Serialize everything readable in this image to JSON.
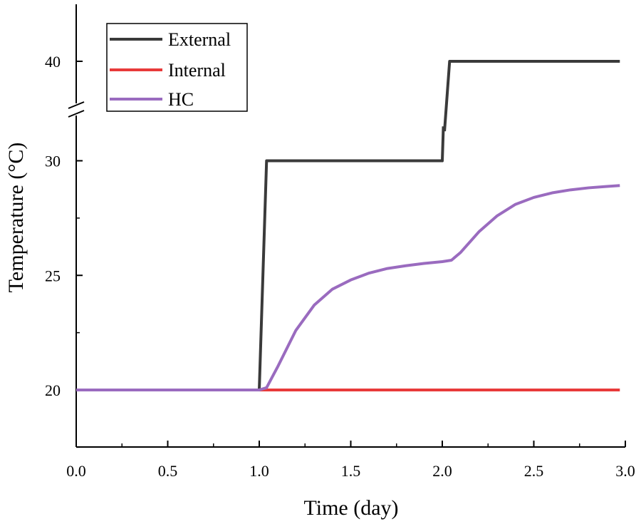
{
  "chart_data": {
    "type": "line",
    "title": "",
    "xlabel": "Time (day)",
    "ylabel": "Temperature (°C)",
    "xlim": [
      0,
      3
    ],
    "ylim_lower_segment": [
      17.5,
      31.5
    ],
    "ylim_upper_segment": [
      33,
      44
    ],
    "axis_break": "y between 31.5 and 33",
    "x_ticks": [
      "0.0",
      "0.5",
      "1.0",
      "1.5",
      "2.0",
      "2.5",
      "3.0"
    ],
    "x_tick_values": [
      0,
      0.5,
      1.0,
      1.5,
      2.0,
      2.5,
      3.0
    ],
    "y_ticks": [
      "20",
      "25",
      "30",
      "40"
    ],
    "y_tick_values": [
      20,
      25,
      30,
      40
    ],
    "legend_position": "top-left",
    "series": [
      {
        "name": "External",
        "color": "#3a3a3a",
        "x": [
          0,
          1.0,
          1.04,
          2.0,
          2.04,
          2.97
        ],
        "y": [
          20,
          20,
          30,
          30,
          40,
          40
        ]
      },
      {
        "name": "Internal",
        "color": "#e83a3a",
        "x": [
          0,
          2.97
        ],
        "y": [
          20,
          20
        ]
      },
      {
        "name": "HC",
        "color": "#9a6bbf",
        "x": [
          0,
          1.0,
          1.04,
          1.1,
          1.2,
          1.3,
          1.4,
          1.5,
          1.6,
          1.7,
          1.8,
          1.9,
          2.0,
          2.05,
          2.1,
          2.2,
          2.3,
          2.4,
          2.5,
          2.6,
          2.7,
          2.8,
          2.9,
          2.97
        ],
        "y": [
          20,
          20,
          20.1,
          21.0,
          22.6,
          23.7,
          24.4,
          24.8,
          25.1,
          25.3,
          25.42,
          25.52,
          25.6,
          25.66,
          26.0,
          26.9,
          27.6,
          28.1,
          28.4,
          28.6,
          28.73,
          28.82,
          28.88,
          28.92
        ]
      }
    ]
  }
}
